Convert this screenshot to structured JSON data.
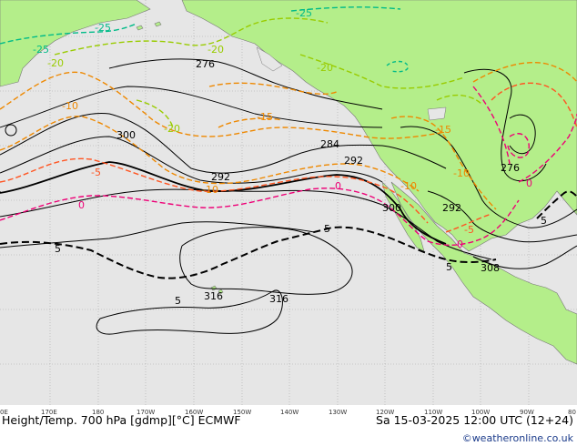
{
  "title": "Height/Temp. 700 hPa [gdmp][°C] ECMWF",
  "valid_time": "Sa 15-03-2025 12:00 UTC (12+24)",
  "credit": "©weatheronline.co.uk",
  "longitude_ticks": [
    "0E",
    "170E",
    "180",
    "170W",
    "160W",
    "150W",
    "140W",
    "130W",
    "120W",
    "110W",
    "100W",
    "90W",
    "80"
  ],
  "height_labels": [
    "276",
    "300",
    "292",
    "284",
    "292",
    "300",
    "292",
    "276",
    "308",
    "316",
    "316"
  ],
  "temp_labels": [
    "-25",
    "-25",
    "-25",
    "-20",
    "-20",
    "-20",
    "-20",
    "-15",
    "-15",
    "-10",
    "-10",
    "-10",
    "-10",
    "-5",
    "-5",
    "0",
    "0",
    "0",
    "0",
    "5",
    "5",
    "5",
    "5",
    "5"
  ],
  "colors": {
    "land": "#b4ee8a",
    "ocean": "#e6e6e6",
    "height_contour": "#000000",
    "temp_minus25": "#00bb88",
    "temp_minus20": "#99cc00",
    "temp_minus15_minus10": "#ee8800",
    "temp_minus5": "#ff5522",
    "temp_0": "#ee0077",
    "temp_5": "#000000"
  }
}
